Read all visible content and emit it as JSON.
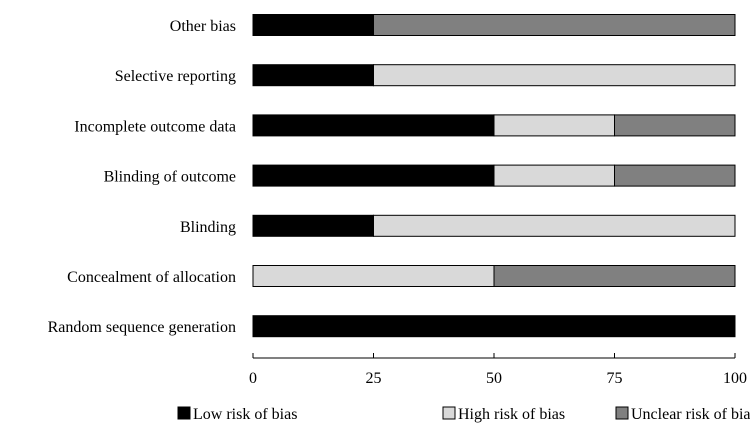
{
  "chart_data": {
    "type": "bar",
    "orientation": "horizontal",
    "stacked": true,
    "title": "",
    "xlabel": "",
    "ylabel": "",
    "categories": [
      "Other bias",
      "Selective reporting",
      "Incomplete outcome data",
      "Blinding of outcome",
      "Blinding",
      "Concealment of allocation",
      "Random sequence generation"
    ],
    "series": [
      {
        "name": "Low risk of bias",
        "color": "#000000",
        "values": [
          25,
          25,
          50,
          50,
          25,
          0,
          100
        ]
      },
      {
        "name": "High risk of bias",
        "color": "#d9d9d9",
        "values": [
          0,
          75,
          25,
          25,
          75,
          50,
          0
        ]
      },
      {
        "name": "Unclear risk of bias",
        "color": "#808080",
        "values": [
          75,
          0,
          25,
          25,
          0,
          50,
          0
        ]
      }
    ],
    "xlim": [
      0,
      100
    ],
    "xticks": [
      0,
      25,
      50,
      75,
      100
    ],
    "grid": false,
    "legend_position": "bottom"
  }
}
